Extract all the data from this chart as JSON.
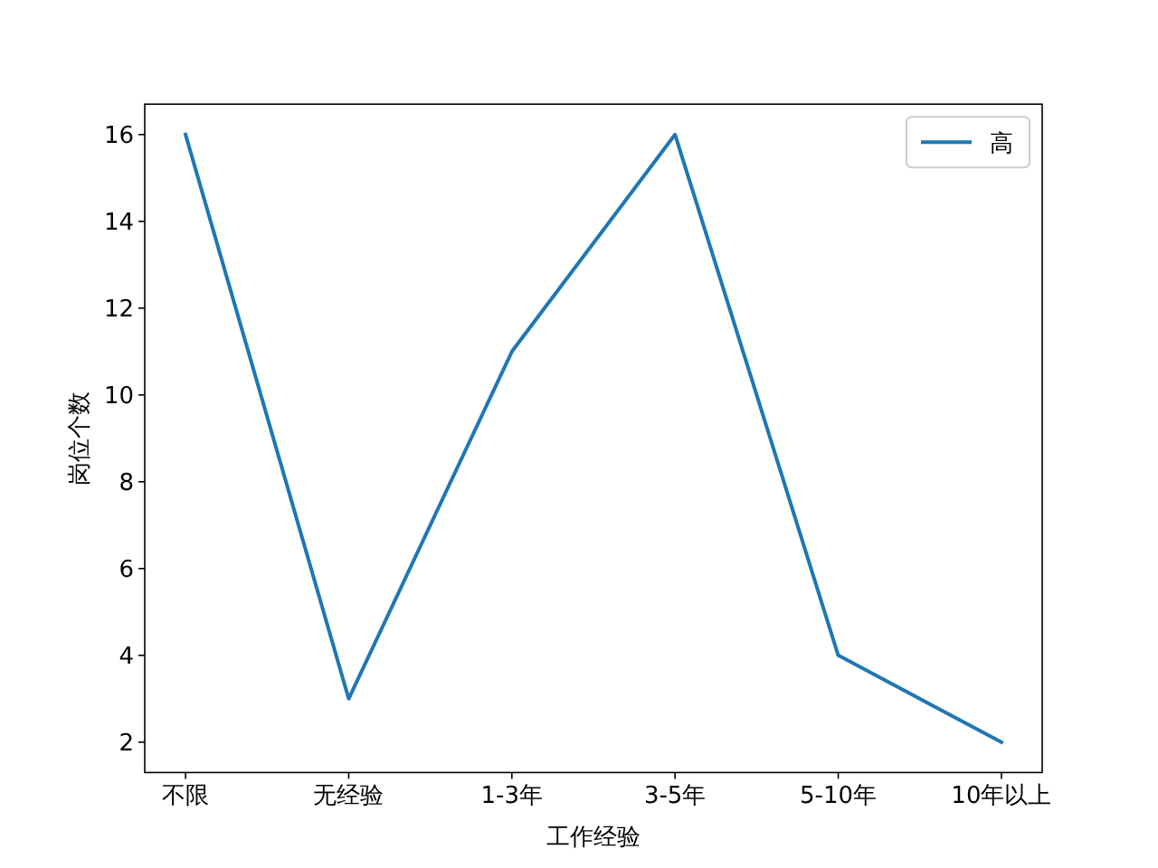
{
  "chart_data": {
    "type": "line",
    "xlabel": "工作经验",
    "ylabel": "岗位个数",
    "categories": [
      "不限",
      "无经验",
      "1-3年",
      "3-5年",
      "5-10年",
      "10年以上"
    ],
    "series": [
      {
        "name": "高",
        "color": "#1f77b4",
        "values": [
          16,
          3,
          11,
          16,
          4,
          2
        ]
      }
    ],
    "ylim": [
      1.3,
      16.7
    ],
    "yticks": [
      2,
      4,
      6,
      8,
      10,
      12,
      14,
      16
    ],
    "legend": "top right"
  }
}
